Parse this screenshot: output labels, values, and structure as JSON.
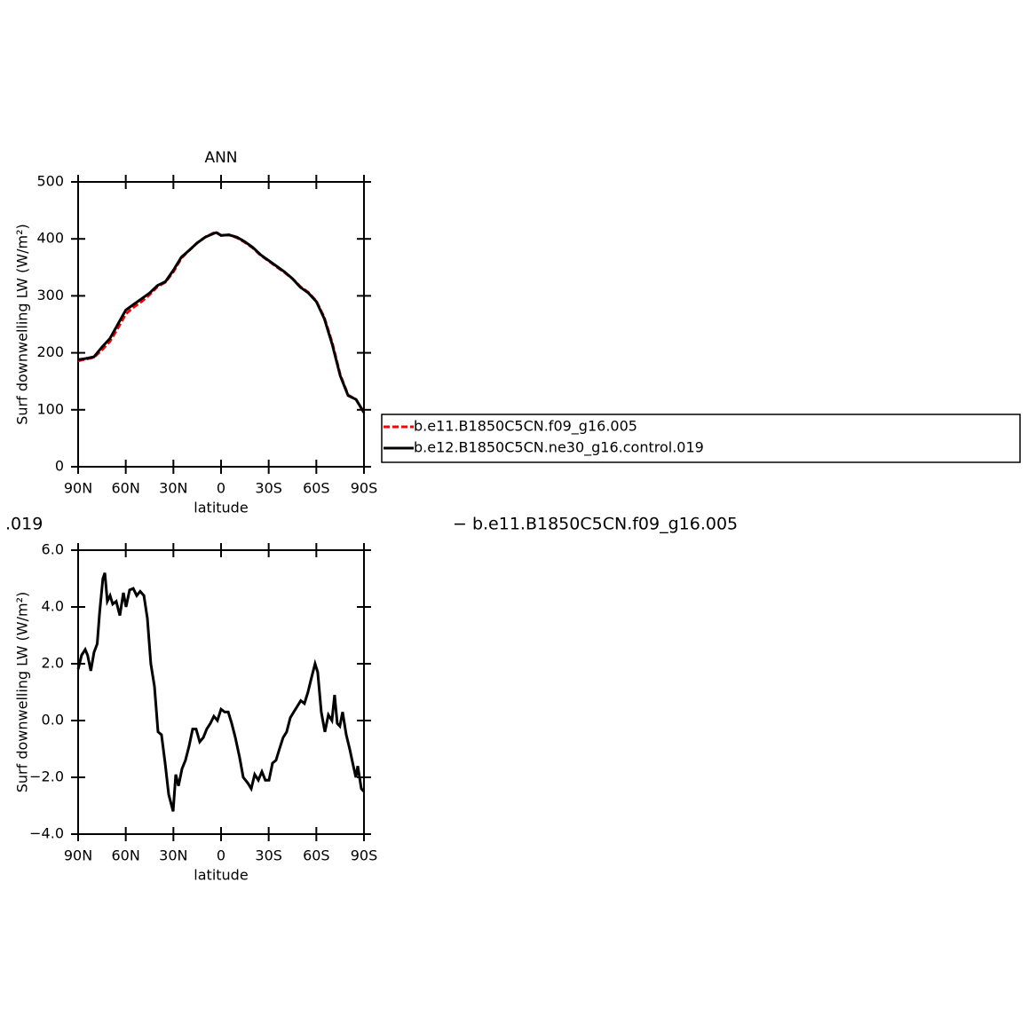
{
  "chart_data": [
    {
      "type": "line",
      "title": "ANN",
      "x_label": "latitude",
      "y_label": "Surf downwelling LW (W/m²)",
      "x": [
        90,
        85,
        80,
        75,
        70,
        65,
        60,
        55,
        50,
        45,
        40,
        35,
        30,
        25,
        20,
        15,
        10,
        5,
        3,
        0,
        -5,
        -10,
        -15,
        -20,
        -25,
        -30,
        -35,
        -40,
        -45,
        -50,
        -55,
        -60,
        -65,
        -70,
        -75,
        -80,
        -85,
        -90
      ],
      "series": [
        {
          "name": "b.e11.B1850C5CN.f09_g16.005",
          "color": "#ff0000",
          "linestyle": "dashed",
          "values": [
            186,
            189,
            192,
            205,
            220,
            243,
            268,
            280,
            290,
            302,
            316,
            324,
            342,
            366,
            380,
            393,
            403,
            410,
            412,
            406,
            407,
            402,
            394,
            384,
            371,
            361,
            351,
            341,
            330,
            316,
            306,
            291,
            262,
            218,
            162,
            126,
            118,
            95
          ]
        },
        {
          "name": "b.e12.B1850C5CN.ne30_g16.control.019",
          "color": "#000000",
          "linestyle": "solid",
          "values": [
            188,
            190,
            193,
            210,
            225,
            250,
            275,
            285,
            295,
            305,
            318,
            325,
            345,
            368,
            380,
            393,
            403,
            409,
            411,
            406,
            407,
            403,
            395,
            385,
            372,
            362,
            352,
            342,
            330,
            315,
            305,
            290,
            260,
            215,
            160,
            125,
            118,
            95
          ]
        }
      ],
      "xlim": [
        90,
        -90
      ],
      "xticks": [
        {
          "value": 90,
          "label": "90N"
        },
        {
          "value": 60,
          "label": "60N"
        },
        {
          "value": 30,
          "label": "30N"
        },
        0,
        {
          "value": -30,
          "label": "30S"
        },
        {
          "value": -60,
          "label": "60S"
        },
        {
          "value": -90,
          "label": "90S"
        }
      ],
      "ylim": [
        0,
        500
      ],
      "yticks": [
        0,
        100,
        200,
        300,
        400,
        500
      ],
      "annotations": [
        ".019",
        "− b.e11.B1850C5CN.f09_g16.005"
      ]
    },
    {
      "type": "line",
      "x_label": "latitude",
      "y_label": "Surf downwelling LW (W/m²)",
      "x": [
        90,
        87.8,
        85.5,
        84,
        82,
        80,
        78,
        76.5,
        74.4,
        73.2,
        71.6,
        69.9,
        68.2,
        66,
        63.7,
        61.5,
        59.8,
        57.6,
        55.3,
        53.1,
        50.9,
        48.6,
        46.4,
        44.2,
        41.9,
        39.7,
        37.5,
        35.2,
        33,
        30.2,
        28.5,
        26.8,
        24.6,
        22.4,
        20.1,
        17.9,
        15.7,
        13.4,
        11.2,
        9,
        6.7,
        4.5,
        2.3,
        0,
        -2.3,
        -4.5,
        -6.7,
        -9,
        -11.7,
        -14,
        -16.8,
        -19,
        -21.2,
        -23.5,
        -25.7,
        -27.9,
        -30.2,
        -32.4,
        -34.6,
        -36.8,
        -39.1,
        -41.3,
        -43.6,
        -45.8,
        -48,
        -50.2,
        -52.5,
        -54.7,
        -56.9,
        -59.2,
        -60.9,
        -63.1,
        -65.4,
        -67.6,
        -69.8,
        -71.5,
        -73.2,
        -74.8,
        -76.5,
        -78.8,
        -81,
        -83.3,
        -84.9,
        -86.1,
        -88.3,
        -90
      ],
      "series": [
        {
          "color": "#000000",
          "linestyle": "solid",
          "values": [
            1.8,
            2.3,
            2.5,
            2.3,
            1.75,
            2.4,
            2.7,
            3.8,
            5.0,
            5.2,
            4.2,
            4.4,
            4.1,
            4.2,
            3.7,
            4.5,
            4.0,
            4.6,
            4.65,
            4.4,
            4.55,
            4.4,
            3.6,
            2.0,
            1.2,
            -0.4,
            -0.5,
            -1.5,
            -2.6,
            -3.2,
            -1.9,
            -2.3,
            -1.7,
            -1.4,
            -0.9,
            -0.3,
            -0.3,
            -0.75,
            -0.6,
            -0.3,
            -0.1,
            0.15,
            0.0,
            0.4,
            0.3,
            0.3,
            -0.1,
            -0.6,
            -1.3,
            -2.0,
            -2.2,
            -2.4,
            -1.9,
            -2.1,
            -1.8,
            -2.1,
            -2.1,
            -1.5,
            -1.4,
            -1.0,
            -0.6,
            -0.4,
            0.1,
            0.3,
            0.5,
            0.7,
            0.6,
            1.0,
            1.5,
            2.0,
            1.7,
            0.3,
            -0.4,
            0.2,
            0.0,
            0.9,
            -0.1,
            -0.2,
            0.3,
            -0.5,
            -1.0,
            -1.6,
            -2.0,
            -1.6,
            -2.4,
            -2.5
          ]
        }
      ],
      "xlim": [
        90,
        -90
      ],
      "xticks": [
        {
          "value": 90,
          "label": "90N"
        },
        {
          "value": 60,
          "label": "60N"
        },
        {
          "value": 30,
          "label": "30N"
        },
        0,
        {
          "value": -30,
          "label": "30S"
        },
        {
          "value": -60,
          "label": "60S"
        },
        {
          "value": -90,
          "label": "90S"
        }
      ],
      "ylim": [
        -4,
        6
      ],
      "yticks": [
        {
          "value": -4,
          "label": "−4.0"
        },
        {
          "value": -2,
          "label": "−2.0"
        },
        {
          "value": 0,
          "label": "0.0"
        },
        {
          "value": 2,
          "label": "2.0"
        },
        {
          "value": 4,
          "label": "4.0"
        },
        {
          "value": 6,
          "label": "6.0"
        }
      ]
    }
  ]
}
